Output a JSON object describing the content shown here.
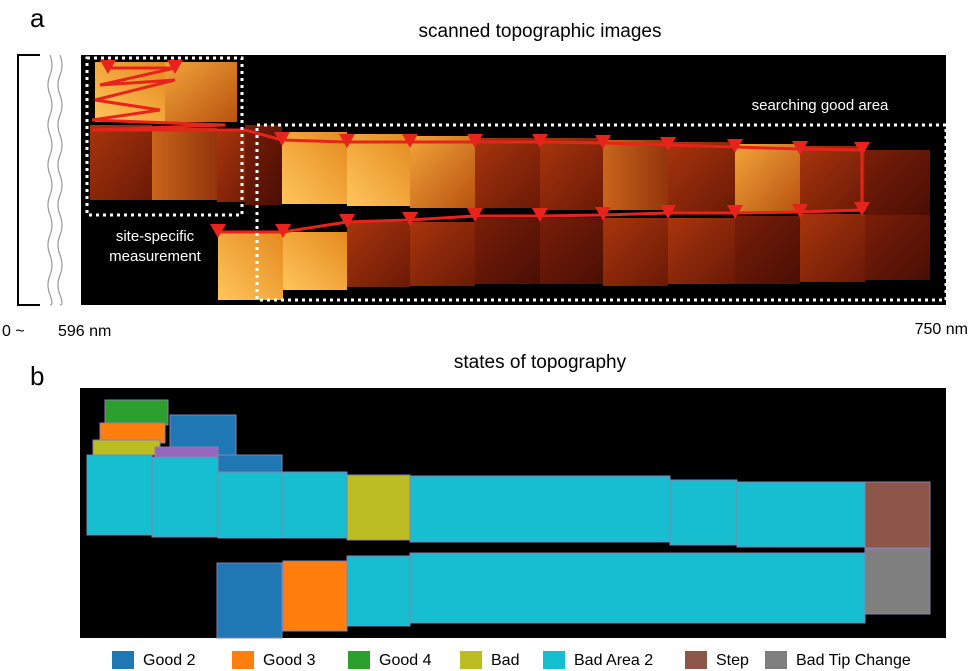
{
  "panel_a": {
    "label": "a",
    "title": "scanned topographic images",
    "annotations": {
      "search": "searching good area",
      "site": [
        "site-specific",
        "measurement"
      ]
    },
    "axis": {
      "start": "0 ~",
      "left": "596 nm",
      "right": "750 nm"
    }
  },
  "panel_b": {
    "label": "b",
    "title": "states of topography",
    "legend": [
      {
        "name": "Good 2",
        "color": "#1f77b4"
      },
      {
        "name": "Good 3",
        "color": "#ff7f0e"
      },
      {
        "name": "Good 4",
        "color": "#2ca02c"
      },
      {
        "name": "Bad",
        "color": "#bcbd22"
      },
      {
        "name": "Bad Area 2",
        "color": "#17becf"
      },
      {
        "name": "Step",
        "color": "#8c564b"
      },
      {
        "name": "Bad Tip Change",
        "color": "#7f7f7f"
      }
    ]
  }
}
